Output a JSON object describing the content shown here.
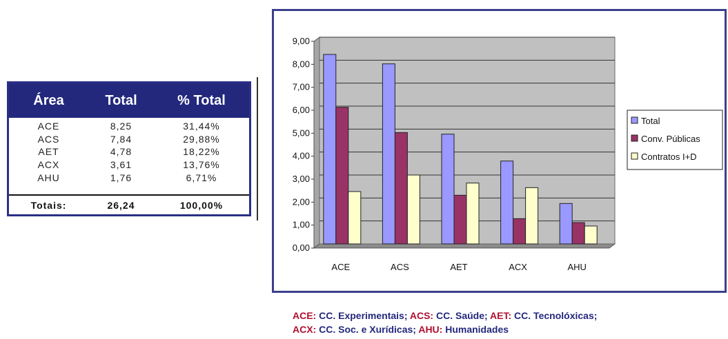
{
  "table": {
    "headers": [
      "Área",
      "Total",
      "% Total"
    ],
    "rows": [
      [
        "ACE",
        "8,25",
        "31,44%"
      ],
      [
        "ACS",
        "7,84",
        "29,88%"
      ],
      [
        "AET",
        "4,78",
        "18,22%"
      ],
      [
        "ACX",
        "3,61",
        "13,76%"
      ],
      [
        "AHU",
        "1,76",
        "6,71%"
      ]
    ],
    "totals": [
      "Totais:",
      "26,24",
      "100,00%"
    ]
  },
  "chart_data": {
    "type": "bar",
    "categories": [
      "ACE",
      "ACS",
      "AET",
      "ACX",
      "AHU"
    ],
    "series": [
      {
        "name": "Total",
        "values": [
          8.25,
          7.84,
          4.78,
          3.61,
          1.76
        ],
        "color": "#9999ff"
      },
      {
        "name": "Conv. Públicas",
        "values": [
          5.95,
          4.85,
          2.12,
          1.1,
          0.93
        ],
        "color": "#993366"
      },
      {
        "name": "Contratos I+D",
        "values": [
          2.28,
          3.0,
          2.65,
          2.45,
          0.78
        ],
        "color": "#ffffcc"
      }
    ],
    "y_ticks": [
      "0,00",
      "1,00",
      "2,00",
      "3,00",
      "4,00",
      "5,00",
      "6,00",
      "7,00",
      "8,00",
      "9,00"
    ],
    "ylim": [
      0,
      9
    ],
    "plot_background": "#c0c0c0",
    "grid": true,
    "legend_position": "right"
  },
  "footer": {
    "line1": [
      {
        "code": "ACE:",
        "desc": " CC. Experimentais;  "
      },
      {
        "code": "ACS:",
        "desc": " CC. Saúde; "
      },
      {
        "code": "AET:",
        "desc": " CC. Tecnolóxicas;"
      }
    ],
    "line2": [
      {
        "code": "ACX:",
        "desc": " CC. Soc. e Xurídicas; "
      },
      {
        "code": "AHU:",
        "desc": " Humanidades"
      }
    ]
  }
}
